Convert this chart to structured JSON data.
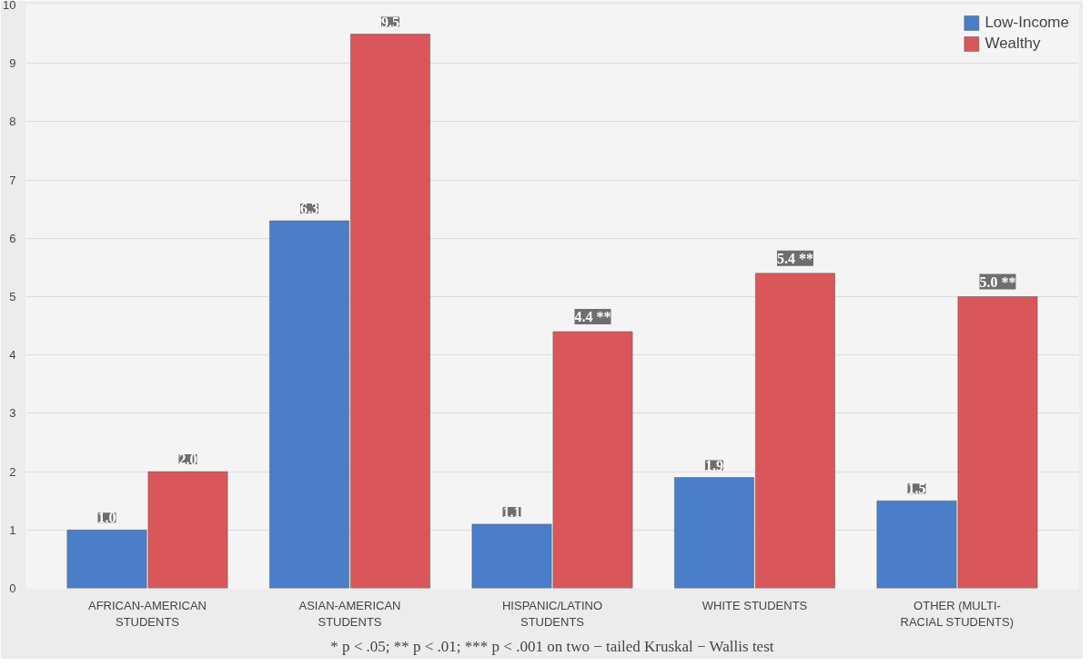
{
  "chart_data": {
    "type": "bar",
    "categories": [
      "AFRICAN-AMERICAN STUDENTS",
      "ASIAN-AMERICAN STUDENTS",
      "HISPANIC/LATINO STUDENTS",
      "WHITE STUDENTS",
      "OTHER (MULTI-RACIAL STUDENTS)"
    ],
    "series": [
      {
        "name": "Low-Income",
        "color": "#4a7ec8",
        "values": [
          1.0,
          6.3,
          1.1,
          1.9,
          1.5
        ],
        "value_labels": [
          "1.0",
          "6.3",
          "1.1",
          "1.9",
          "1.5"
        ]
      },
      {
        "name": "Wealthy",
        "color": "#d9575a",
        "values": [
          2.0,
          9.5,
          4.4,
          5.4,
          5.0
        ],
        "value_labels": [
          "2.0",
          "9.5",
          "4.4 **",
          "5.4 **",
          "5.0 **"
        ]
      }
    ],
    "ylim": [
      0,
      10
    ],
    "yticks": [
      0,
      1,
      2,
      3,
      4,
      5,
      6,
      7,
      8,
      9,
      10
    ],
    "grid": "y",
    "legend": "top right",
    "annotations": [
      "* p < .05; ** p < .01; *** p < .001 on two − tailed Kruskal − Wallis test"
    ]
  }
}
